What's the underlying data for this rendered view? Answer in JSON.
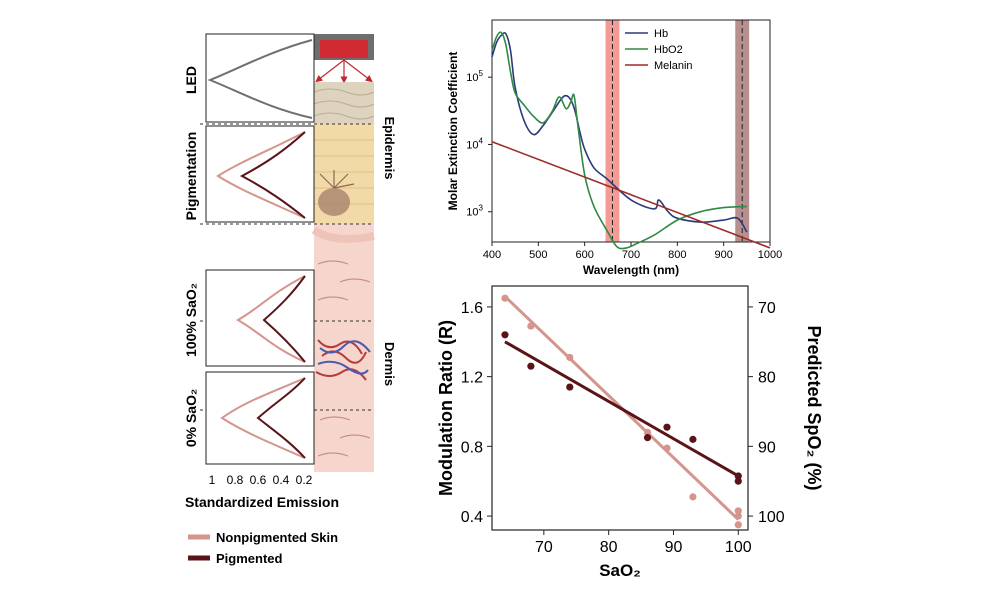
{
  "colors": {
    "nonpigmented": "#d4958c",
    "pigmented": "#5a1418",
    "hb": "#2b3a7a",
    "hbo2": "#2e8a45",
    "melanin": "#9c2c28",
    "led_curve": "#707070",
    "red_band": "#f27a72",
    "nir_band": "#a06a6a"
  },
  "panel_a": {
    "row_labels": [
      "LED",
      "Pigmentation",
      "100% SaO₂",
      "0% SaO₂"
    ],
    "layer_labels": [
      "Epidermis",
      "Dermis"
    ],
    "x_ticks": [
      "1",
      "0.8",
      "0.6",
      "0.4",
      "0.2"
    ],
    "xlabel": "Standardized Emission",
    "legend": [
      "Nonpigmented Skin",
      "Pigmented"
    ]
  },
  "chart_data": [
    {
      "type": "line",
      "title": "",
      "xlabel": "Wavelength (nm)",
      "ylabel": "Molar Extinction Coefficient",
      "xlim": [
        400,
        1000
      ],
      "ylim_log10": [
        2.55,
        5.85
      ],
      "x_ticks": [
        "400",
        "500",
        "600",
        "700",
        "800",
        "900",
        "1000"
      ],
      "y_ticks": [
        {
          "base": "10",
          "exp": "3",
          "log": 3
        },
        {
          "base": "10",
          "exp": "4",
          "log": 4
        },
        {
          "base": "10",
          "exp": "5",
          "log": 5
        }
      ],
      "bands": [
        {
          "center": 660,
          "range": [
            645,
            675
          ]
        },
        {
          "center": 940,
          "range": [
            925,
            955
          ]
        }
      ],
      "legend_position": "top-right",
      "series": [
        {
          "name": "Hb",
          "color_key": "hb",
          "x": [
            400,
            410,
            420,
            430,
            440,
            450,
            470,
            490,
            510,
            530,
            550,
            560,
            570,
            580,
            590,
            600,
            620,
            650,
            700,
            750,
            760,
            780,
            800,
            850,
            900,
            930,
            950
          ],
          "y": [
            200000,
            330000,
            420000,
            440000,
            250000,
            70000,
            22000,
            14000,
            19000,
            30000,
            48000,
            53000,
            46000,
            30000,
            15000,
            8500,
            4500,
            3000,
            1500,
            1100,
            1500,
            1000,
            800,
            700,
            750,
            800,
            500
          ]
        },
        {
          "name": "HbO2",
          "color_key": "hbo2",
          "x": [
            400,
            410,
            420,
            430,
            440,
            450,
            470,
            490,
            510,
            530,
            545,
            560,
            570,
            577,
            585,
            600,
            620,
            650,
            670,
            690,
            710,
            750,
            800,
            850,
            900,
            950
          ],
          "y": [
            250000,
            400000,
            460000,
            300000,
            120000,
            58000,
            38000,
            26000,
            21000,
            31000,
            51000,
            34000,
            43000,
            54000,
            20000,
            3500,
            1200,
            500,
            300,
            290,
            330,
            450,
            750,
            1000,
            1150,
            1200
          ]
        },
        {
          "name": "Melanin",
          "color_key": "melanin",
          "x": [
            400,
            1000
          ],
          "y": [
            11000,
            290
          ]
        }
      ]
    },
    {
      "type": "scatter",
      "title": "",
      "xlabel": "SaO₂",
      "ylabel": "Modulation Ratio (R)",
      "y2label": "Predicted SpO₂ (%)",
      "xlim": [
        62,
        101.5
      ],
      "ylim": [
        0.32,
        1.72
      ],
      "x_ticks": [
        70,
        80,
        90,
        100
      ],
      "y_ticks": [
        0.4,
        0.8,
        1.2,
        1.6
      ],
      "y2_ticks": [
        {
          "label": "70",
          "r": 1.6
        },
        {
          "label": "80",
          "r": 1.2
        },
        {
          "label": "90",
          "r": 0.8
        },
        {
          "label": "100",
          "r": 0.4
        }
      ],
      "series": [
        {
          "name": "Nonpigmented Skin",
          "color_key": "nonpigmented",
          "x": [
            64,
            68,
            74,
            86,
            89,
            93,
            100,
            100,
            100
          ],
          "y": [
            1.65,
            1.49,
            1.31,
            0.88,
            0.79,
            0.51,
            0.43,
            0.4,
            0.35
          ],
          "fit": [
            [
              64,
              1.66
            ],
            [
              100,
              0.38
            ]
          ]
        },
        {
          "name": "Pigmented",
          "color_key": "pigmented",
          "x": [
            64,
            68,
            74,
            86,
            89,
            93,
            100,
            100
          ],
          "y": [
            1.44,
            1.26,
            1.14,
            0.85,
            0.91,
            0.84,
            0.63,
            0.6
          ],
          "fit": [
            [
              64,
              1.4
            ],
            [
              100,
              0.63
            ]
          ]
        }
      ]
    }
  ]
}
